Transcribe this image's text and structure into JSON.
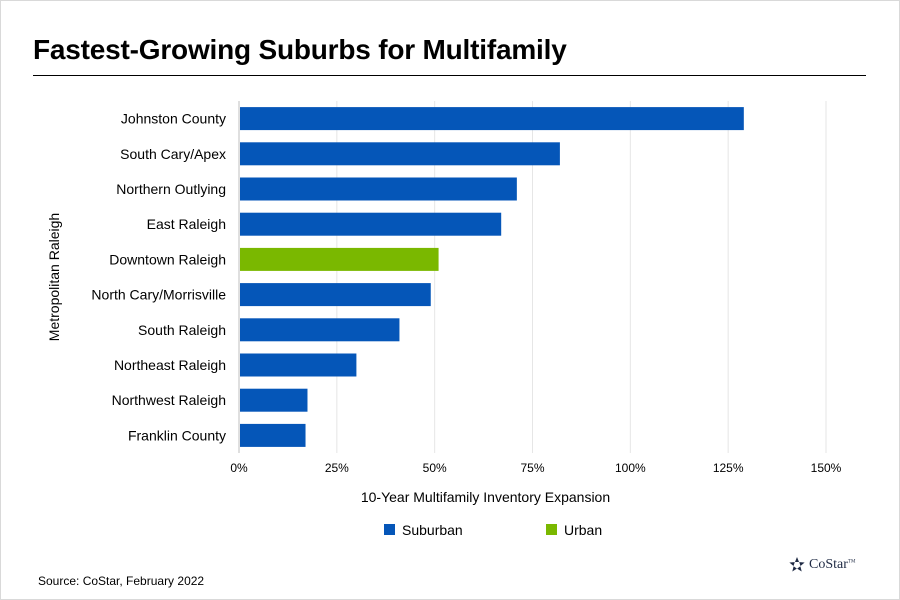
{
  "page": {
    "title": "Fastest-Growing Suburbs for Multifamily",
    "source": "Source: CoStar, February 2022",
    "logo_text": "CoStar",
    "logo_tm": "TM"
  },
  "chart_data": {
    "type": "bar",
    "orientation": "horizontal",
    "title": "Fastest-Growing Suburbs for Multifamily",
    "xlabel": "10-Year Multifamily Inventory Expansion",
    "ylabel": "Metropolitan Raleigh",
    "xlim": [
      0,
      150
    ],
    "x_ticks": [
      0,
      25,
      50,
      75,
      100,
      125,
      150
    ],
    "x_tick_labels": [
      "0%",
      "25%",
      "50%",
      "75%",
      "100%",
      "125%",
      "150%"
    ],
    "grid": "vertical",
    "legend_position": "bottom",
    "categories": [
      "Johnston County",
      "South Cary/Apex",
      "Northern Outlying",
      "East Raleigh",
      "Downtown Raleigh",
      "North Cary/Morrisville",
      "South Raleigh",
      "Northeast Raleigh",
      "Northwest Raleigh",
      "Franklin County"
    ],
    "values": [
      129,
      82,
      71,
      67,
      51,
      49,
      41,
      30,
      17.5,
      17
    ],
    "groups": [
      "Suburban",
      "Suburban",
      "Suburban",
      "Suburban",
      "Urban",
      "Suburban",
      "Suburban",
      "Suburban",
      "Suburban",
      "Suburban"
    ],
    "legend": [
      {
        "name": "Suburban",
        "color": "#0556b8"
      },
      {
        "name": "Urban",
        "color": "#7ab800"
      }
    ],
    "grid_color": "#e6e6e6",
    "axis_color": "#bfbfbf"
  }
}
